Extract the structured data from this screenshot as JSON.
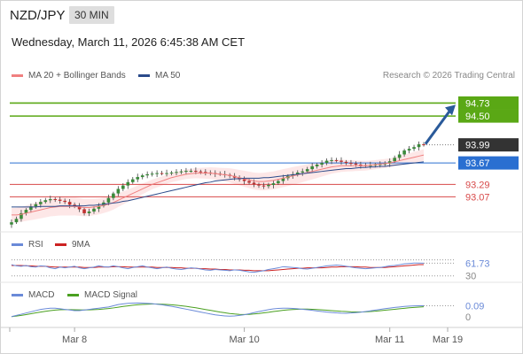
{
  "header": {
    "symbol": "NZD/JPY",
    "interval": "30 MIN",
    "datetime": "Wednesday, March 11, 2026 6:45:38 AM CET",
    "copyright": "Research © 2026 Trading Central"
  },
  "colors": {
    "ma20": "#f08080",
    "ma50": "#2a4a8a",
    "bands": "#fbd4d4",
    "target": "#5aa815",
    "pivot": "#2a6fd1",
    "support": "#d84a4a",
    "rsi": "#6a8ad8",
    "rsi9": "#cc2222",
    "macd": "#6a8ad8",
    "macd_signal": "#4aa020",
    "last_price": "#333333",
    "arrow": "#2a5a9a"
  },
  "legend": {
    "ma20": "MA 20 + Bollinger Bands",
    "ma50": "MA 50",
    "rsi": "RSI",
    "rsi9": "9MA",
    "macd": "MACD",
    "macd_signal": "MACD Signal"
  },
  "chart_data": [
    {
      "type": "candlestick",
      "title": "NZD/JPY",
      "x_ticks": [
        "Mar 8",
        "Mar 10",
        "Mar 11",
        "Mar 19"
      ],
      "ylim": [
        92.45,
        95.05
      ],
      "close": [
        92.62,
        92.68,
        92.78,
        92.84,
        92.9,
        92.94,
        92.98,
        93.01,
        93.03,
        93.02,
        93.0,
        92.98,
        92.93,
        92.9,
        92.85,
        92.78,
        92.81,
        92.86,
        92.91,
        92.97,
        93.05,
        93.13,
        93.21,
        93.27,
        93.33,
        93.38,
        93.42,
        93.45,
        93.47,
        93.48,
        93.49,
        93.48,
        93.49,
        93.5,
        93.51,
        93.52,
        93.53,
        93.53,
        93.52,
        93.51,
        93.5,
        93.49,
        93.48,
        93.47,
        93.46,
        93.44,
        93.41,
        93.38,
        93.35,
        93.32,
        93.29,
        93.27,
        93.26,
        93.28,
        93.31,
        93.35,
        93.4,
        93.44,
        93.47,
        93.5,
        93.52,
        93.56,
        93.61,
        93.64,
        93.67,
        93.71,
        93.72,
        93.71,
        93.69,
        93.67,
        93.66,
        93.64,
        93.63,
        93.62,
        93.63,
        93.64,
        93.65,
        93.66,
        93.7,
        93.76,
        93.82,
        93.89,
        93.92,
        93.95,
        94.0,
        93.99
      ],
      "series": [
        {
          "name": "MA 20 + Bollinger Bands",
          "values": [
            92.75,
            92.75,
            92.76,
            92.78,
            92.8,
            92.82,
            92.84,
            92.86,
            92.88,
            92.89,
            92.9,
            92.9,
            92.9,
            92.9,
            92.89,
            92.88,
            92.88,
            92.89,
            92.9,
            92.92,
            92.94,
            92.97,
            93.01,
            93.05,
            93.09,
            93.13,
            93.17,
            93.21,
            93.25,
            93.29,
            93.32,
            93.35,
            93.38,
            93.41,
            93.43,
            93.45,
            93.47,
            93.48,
            93.49,
            93.49,
            93.49,
            93.49,
            93.48,
            93.47,
            93.46,
            93.45,
            93.43,
            93.41,
            93.39,
            93.37,
            93.35,
            93.34,
            93.34,
            93.35,
            93.36,
            93.38,
            93.4,
            93.42,
            93.44,
            93.46,
            93.48,
            93.5,
            93.52,
            93.54,
            93.56,
            93.58,
            93.6,
            93.61,
            93.62,
            93.62,
            93.62,
            93.62,
            93.62,
            93.62,
            93.63,
            93.64,
            93.65,
            93.66,
            93.67,
            93.69,
            93.71,
            93.73,
            93.75,
            93.77,
            93.79,
            93.81
          ]
        },
        {
          "name": "MA 50",
          "values": [
            92.89,
            92.89,
            92.89,
            92.89,
            92.89,
            92.89,
            92.9,
            92.9,
            92.9,
            92.9,
            92.91,
            92.91,
            92.91,
            92.91,
            92.91,
            92.91,
            92.92,
            92.92,
            92.93,
            92.94,
            92.95,
            92.96,
            92.97,
            92.99,
            93.0,
            93.02,
            93.04,
            93.06,
            93.08,
            93.1,
            93.12,
            93.14,
            93.16,
            93.18,
            93.2,
            93.22,
            93.24,
            93.26,
            93.28,
            93.3,
            93.32,
            93.33,
            93.35,
            93.36,
            93.37,
            93.38,
            93.39,
            93.39,
            93.4,
            93.4,
            93.4,
            93.4,
            93.41,
            93.41,
            93.42,
            93.43,
            93.44,
            93.45,
            93.46,
            93.47,
            93.48,
            93.49,
            93.5,
            93.51,
            93.52,
            93.53,
            93.54,
            93.55,
            93.56,
            93.57,
            93.57,
            93.58,
            93.59,
            93.59,
            93.6,
            93.6,
            93.61,
            93.61,
            93.62,
            93.63,
            93.64,
            93.65,
            93.66,
            93.67,
            93.68,
            93.69
          ]
        }
      ],
      "levels": [
        {
          "label": "94.73",
          "value": 94.73,
          "kind": "target"
        },
        {
          "label": "94.50",
          "value": 94.5,
          "kind": "target"
        },
        {
          "label": "93.99",
          "value": 93.99,
          "kind": "last"
        },
        {
          "label": "93.67",
          "value": 93.67,
          "kind": "pivot"
        },
        {
          "label": "93.29",
          "value": 93.29,
          "kind": "support"
        },
        {
          "label": "93.07",
          "value": 93.07,
          "kind": "support"
        }
      ]
    },
    {
      "type": "line",
      "title": "RSI",
      "ylim": [
        25,
        78
      ],
      "y_ticks": [
        "30"
      ],
      "last_label": "61.73",
      "series": [
        {
          "name": "RSI",
          "values": [
            58,
            55,
            54,
            56,
            53,
            52,
            55,
            54,
            50,
            48,
            52,
            50,
            52,
            54,
            50,
            48,
            50,
            52,
            55,
            53,
            52,
            55,
            53,
            50,
            48,
            51,
            53,
            55,
            52,
            50,
            48,
            50,
            52,
            49,
            47,
            46,
            48,
            50,
            49,
            47,
            45,
            44,
            46,
            45,
            44,
            43,
            45,
            44,
            42,
            40,
            39,
            41,
            43,
            46,
            48,
            50,
            53,
            52,
            51,
            50,
            48,
            47,
            49,
            51,
            53,
            55,
            56,
            57,
            56,
            54,
            52,
            50,
            49,
            48,
            49,
            50,
            51,
            53,
            55,
            56,
            58,
            60,
            61,
            62,
            62,
            61.73
          ]
        },
        {
          "name": "9MA",
          "values": [
            56,
            56,
            56,
            55,
            55,
            54,
            54,
            54,
            53,
            52,
            52,
            52,
            52,
            52,
            52,
            51,
            51,
            51,
            52,
            52,
            52,
            53,
            53,
            53,
            52,
            52,
            52,
            52,
            52,
            52,
            51,
            51,
            51,
            51,
            50,
            50,
            49,
            49,
            49,
            48,
            48,
            47,
            47,
            46,
            46,
            45,
            45,
            45,
            44,
            44,
            43,
            43,
            43,
            43,
            44,
            45,
            46,
            47,
            48,
            49,
            49,
            50,
            50,
            50,
            50,
            51,
            52,
            52,
            53,
            53,
            53,
            53,
            52,
            52,
            51,
            51,
            51,
            51,
            52,
            53,
            54,
            55,
            56,
            57,
            58,
            58
          ]
        }
      ]
    },
    {
      "type": "line",
      "title": "MACD",
      "ylim": [
        -0.06,
        0.13
      ],
      "y_ticks": [
        "0"
      ],
      "last_label": "0.09",
      "series": [
        {
          "name": "MACD",
          "values": [
            0.0,
            0.01,
            0.02,
            0.03,
            0.04,
            0.05,
            0.06,
            0.065,
            0.07,
            0.07,
            0.065,
            0.06,
            0.055,
            0.05,
            0.05,
            0.055,
            0.06,
            0.065,
            0.07,
            0.075,
            0.08,
            0.09,
            0.1,
            0.105,
            0.11,
            0.112,
            0.113,
            0.112,
            0.11,
            0.107,
            0.103,
            0.098,
            0.092,
            0.085,
            0.078,
            0.07,
            0.062,
            0.054,
            0.046,
            0.038,
            0.03,
            0.022,
            0.015,
            0.01,
            0.006,
            0.004,
            0.006,
            0.01,
            0.016,
            0.024,
            0.033,
            0.042,
            0.05,
            0.058,
            0.064,
            0.068,
            0.07,
            0.07,
            0.068,
            0.065,
            0.061,
            0.057,
            0.052,
            0.047,
            0.042,
            0.038,
            0.034,
            0.031,
            0.029,
            0.028,
            0.03,
            0.033,
            0.037,
            0.042,
            0.048,
            0.054,
            0.06,
            0.066,
            0.071,
            0.076,
            0.08,
            0.084,
            0.087,
            0.089,
            0.09,
            0.09
          ]
        },
        {
          "name": "MACD Signal",
          "values": [
            0.0,
            0.005,
            0.01,
            0.017,
            0.024,
            0.031,
            0.038,
            0.044,
            0.05,
            0.054,
            0.057,
            0.058,
            0.058,
            0.057,
            0.056,
            0.055,
            0.056,
            0.058,
            0.06,
            0.063,
            0.067,
            0.072,
            0.078,
            0.084,
            0.089,
            0.094,
            0.098,
            0.101,
            0.103,
            0.104,
            0.104,
            0.103,
            0.101,
            0.098,
            0.094,
            0.09,
            0.085,
            0.079,
            0.073,
            0.066,
            0.059,
            0.052,
            0.045,
            0.038,
            0.032,
            0.026,
            0.022,
            0.019,
            0.018,
            0.019,
            0.022,
            0.026,
            0.031,
            0.036,
            0.042,
            0.047,
            0.052,
            0.056,
            0.059,
            0.061,
            0.062,
            0.062,
            0.061,
            0.059,
            0.056,
            0.053,
            0.05,
            0.047,
            0.044,
            0.042,
            0.04,
            0.039,
            0.039,
            0.04,
            0.042,
            0.045,
            0.049,
            0.053,
            0.057,
            0.061,
            0.065,
            0.069,
            0.073,
            0.076,
            0.079,
            0.082
          ]
        }
      ]
    }
  ]
}
